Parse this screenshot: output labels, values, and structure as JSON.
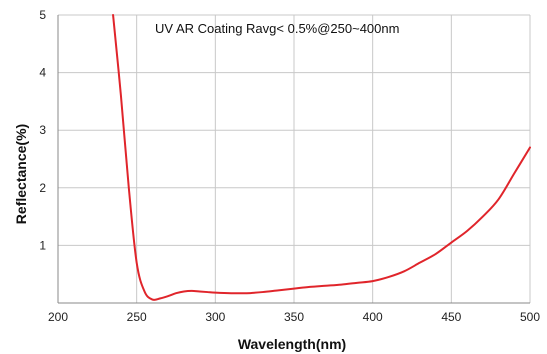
{
  "chart_data": {
    "type": "line",
    "title": "UV AR Coating Ravg< 0.5%@250~400nm",
    "xlabel": "Wavelength(nm)",
    "ylabel": "Reflectance(%)",
    "xlim": [
      200,
      500
    ],
    "ylim": [
      0,
      5
    ],
    "xticks": [
      "200",
      "250",
      "300",
      "350",
      "400",
      "450",
      "500"
    ],
    "yticks": [
      "1",
      "2",
      "3",
      "4",
      "5"
    ],
    "grid": true,
    "legend": "none",
    "series": [
      {
        "color": "#e0252b",
        "x": [
          235,
          240,
          245,
          250,
          255,
          260,
          265,
          270,
          275,
          280,
          285,
          290,
          295,
          300,
          310,
          320,
          330,
          340,
          350,
          360,
          370,
          380,
          390,
          400,
          410,
          420,
          430,
          440,
          450,
          460,
          470,
          480,
          490,
          500
        ],
        "y": [
          5.0,
          3.6,
          2.0,
          0.7,
          0.2,
          0.06,
          0.08,
          0.12,
          0.17,
          0.2,
          0.21,
          0.2,
          0.19,
          0.18,
          0.17,
          0.17,
          0.19,
          0.22,
          0.25,
          0.28,
          0.3,
          0.32,
          0.35,
          0.38,
          0.45,
          0.55,
          0.7,
          0.85,
          1.05,
          1.25,
          1.5,
          1.8,
          2.25,
          2.7
        ]
      }
    ]
  }
}
